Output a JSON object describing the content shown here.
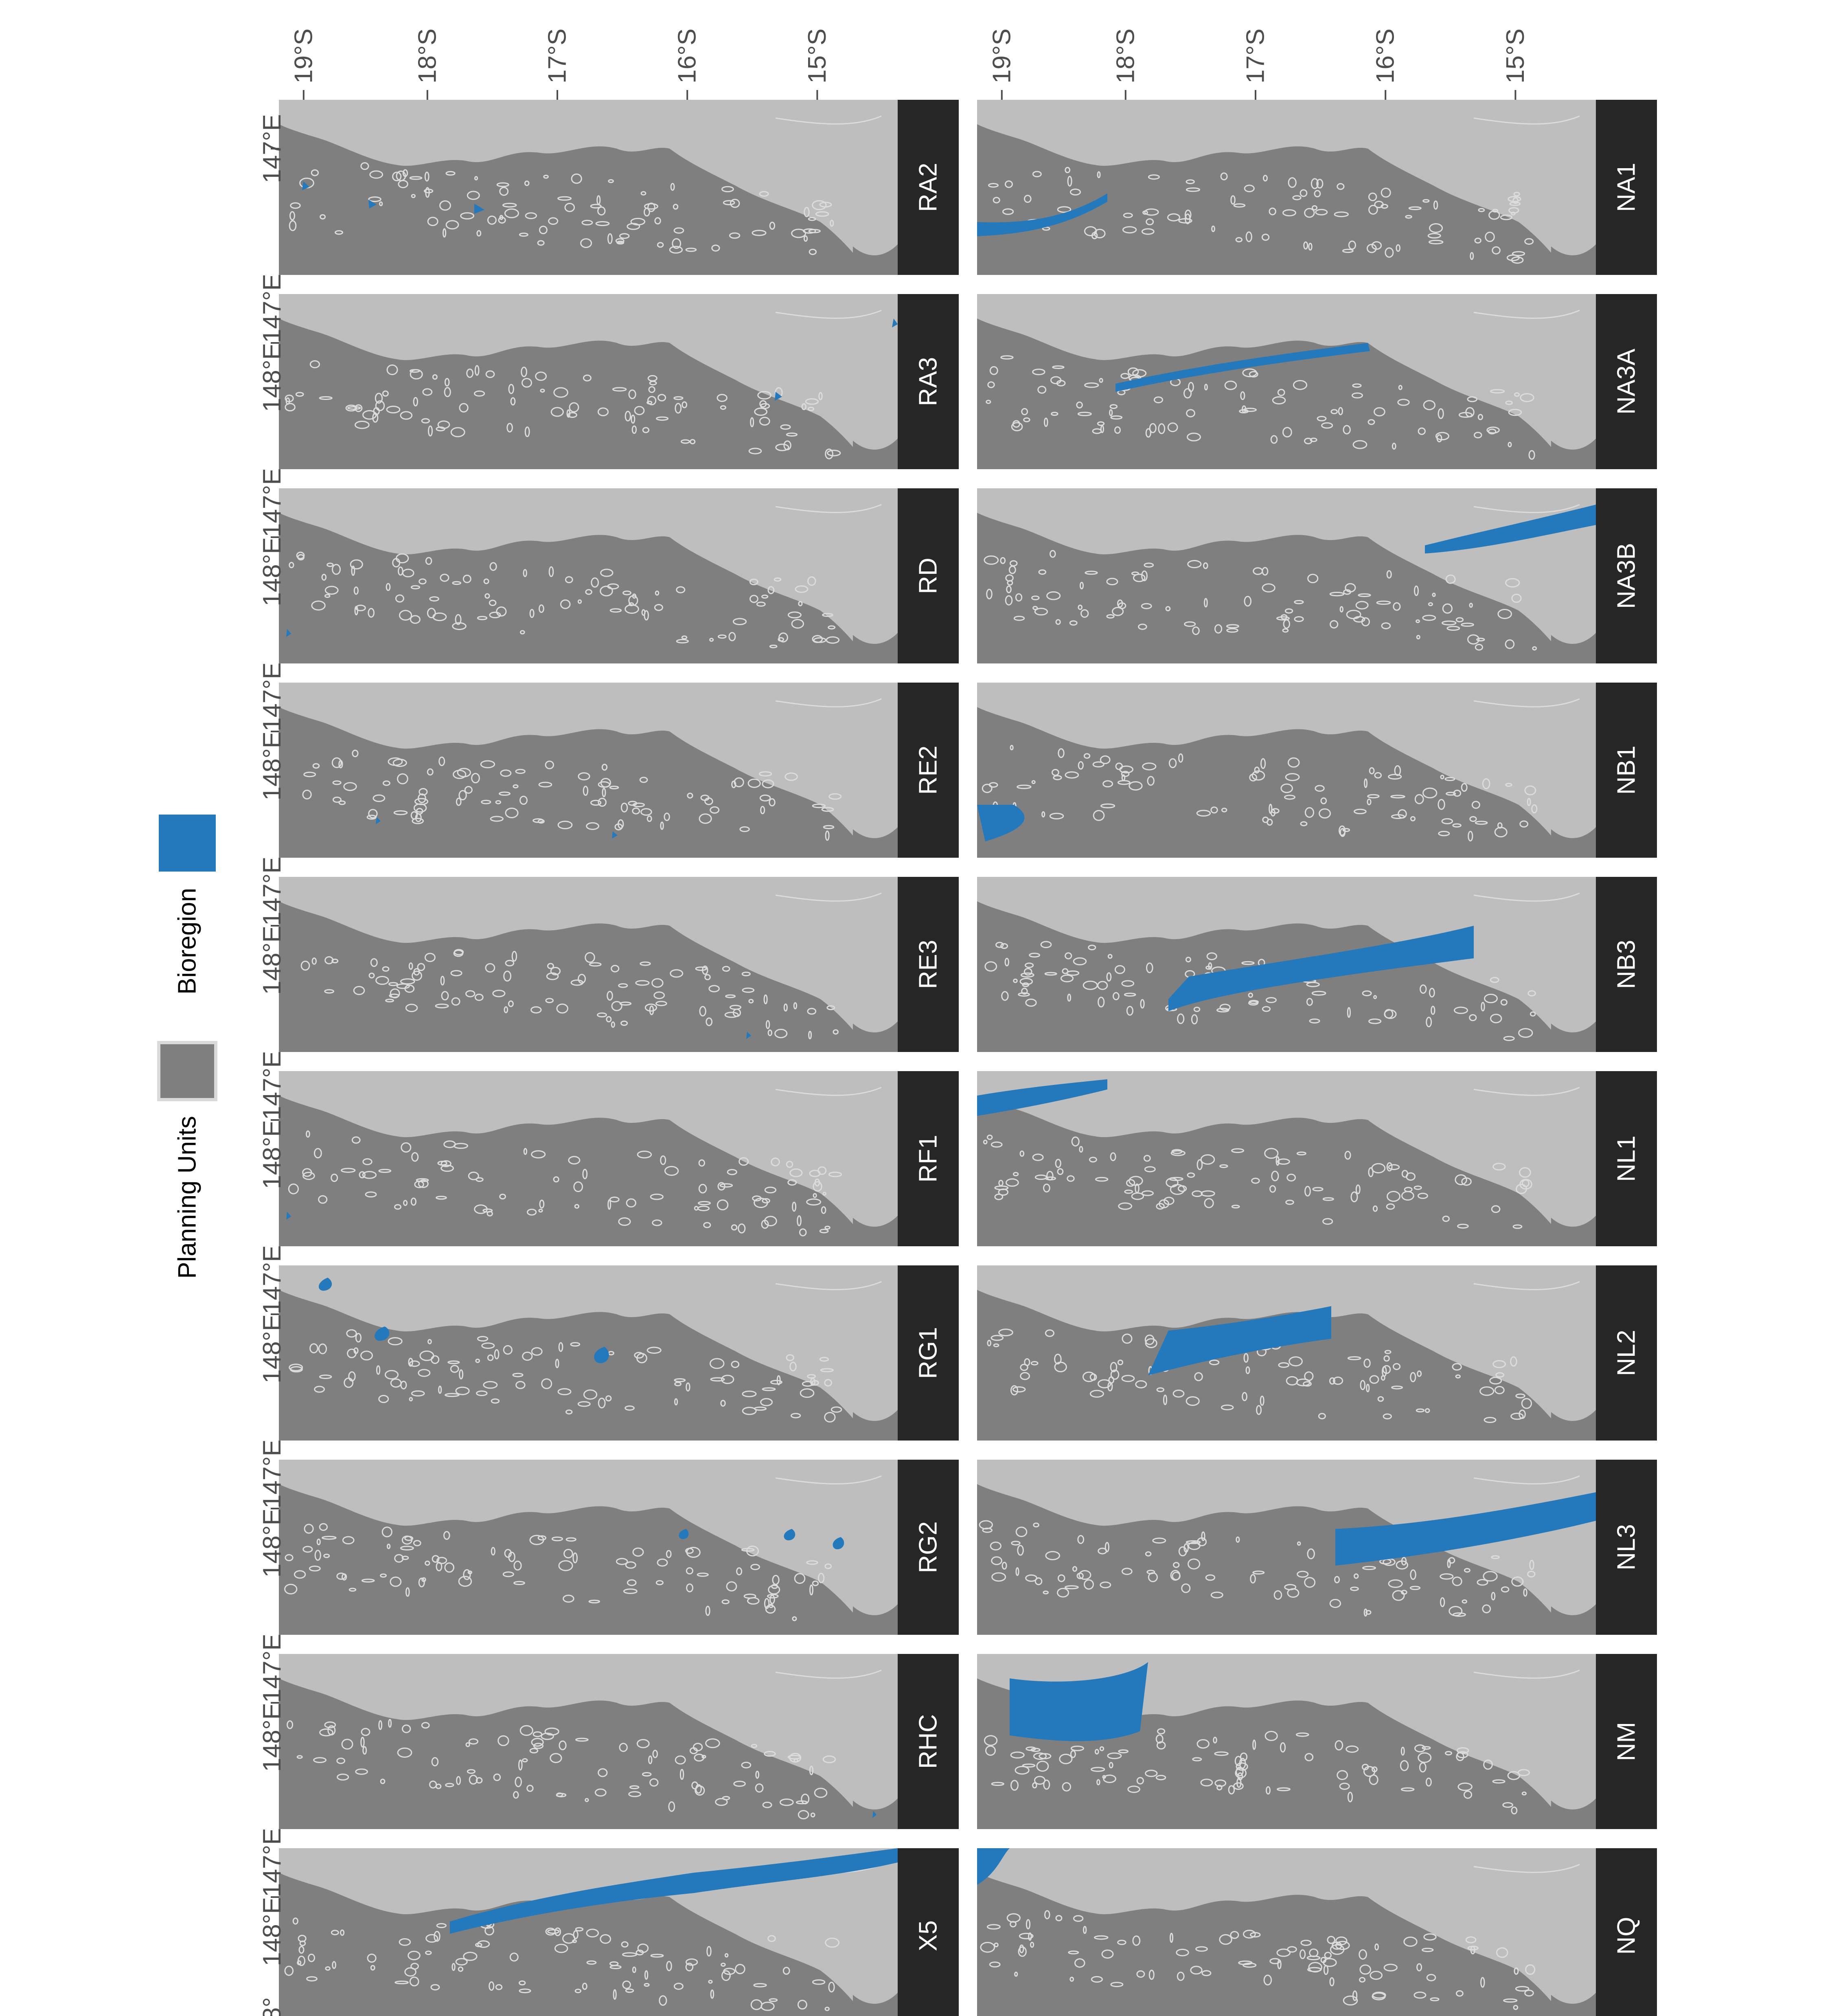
{
  "colors": {
    "bioregion": "#2379BC",
    "planning_units": "#7F7F7F",
    "land": "#BEBEBE",
    "reef_outline": "#DCDCDC",
    "strip": "#262626",
    "strip_text": "#FFFFFF",
    "axis_text": "#4D4D4D"
  },
  "axes": {
    "lat_ticks": [
      "19°S",
      "18°S",
      "17°S",
      "16°S",
      "15°S"
    ],
    "lon_tick_first": "147°E",
    "lon_tick_last_truncated": "148°",
    "lon_tick_join": "148°E147°E"
  },
  "rows": [
    {
      "panels": [
        {
          "id": "NA1",
          "highlight": "coast_north"
        },
        {
          "id": "NA3A",
          "highlight": "coast_south"
        },
        {
          "id": "NA3B",
          "highlight": "coast_far_south"
        },
        {
          "id": "NB1",
          "highlight": "cape_tip"
        },
        {
          "id": "NB3",
          "highlight": "inshore_band"
        },
        {
          "id": "NL1",
          "highlight": "outer_north"
        },
        {
          "id": "NL2",
          "highlight": "lagoon_mid"
        },
        {
          "id": "NL3",
          "highlight": "lagoon_south"
        },
        {
          "id": "NM",
          "highlight": "shelf_north"
        },
        {
          "id": "NQ",
          "highlight": "shelf_corner"
        }
      ]
    },
    {
      "panels": [
        {
          "id": "RA2",
          "highlight": "reef_specks_a"
        },
        {
          "id": "RA3",
          "highlight": "reef_specks_b"
        },
        {
          "id": "RD",
          "highlight": "tiny_north"
        },
        {
          "id": "RE2",
          "highlight": "reef_specks_c"
        },
        {
          "id": "RE3",
          "highlight": "tiny_south"
        },
        {
          "id": "RF1",
          "highlight": "tiny_north"
        },
        {
          "id": "RG1",
          "highlight": "reef_clusters_north"
        },
        {
          "id": "RG2",
          "highlight": "reef_clusters_south"
        },
        {
          "id": "RHC",
          "highlight": "tiny_far_south"
        },
        {
          "id": "X5",
          "highlight": "outer_band"
        }
      ]
    }
  ],
  "legend": {
    "items": [
      {
        "key": "bioregion",
        "label": "Bioregion"
      },
      {
        "key": "planning_units",
        "label": "Planning Units"
      }
    ]
  }
}
